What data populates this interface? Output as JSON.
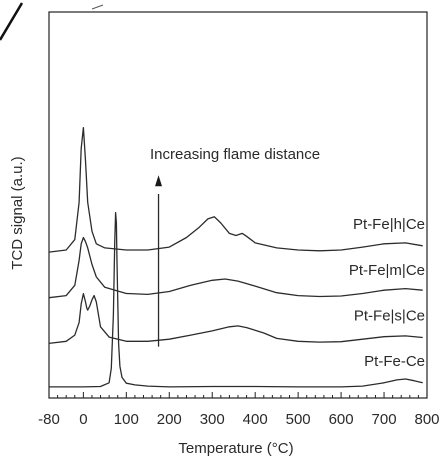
{
  "chart_data": {
    "type": "line",
    "title": "",
    "xlabel": "Temperature (°C)",
    "ylabel": "TCD signal (a.u.)",
    "xlim": [
      -80,
      800
    ],
    "x_ticks": [
      -80,
      0,
      100,
      200,
      300,
      400,
      500,
      600,
      700,
      800
    ],
    "y_ticks_shown": false,
    "grid": false,
    "annotation": {
      "text": "Increasing flame distance",
      "arrow_x": 175,
      "direction": "up"
    },
    "series": [
      {
        "name": "Pt-Fe|h|Ce",
        "offset": 3.3,
        "x": [
          -80,
          -40,
          -20,
          -10,
          -5,
          0,
          5,
          10,
          20,
          30,
          50,
          100,
          150,
          200,
          240,
          270,
          290,
          305,
          320,
          340,
          355,
          370,
          380,
          400,
          450,
          500,
          550,
          600,
          650,
          700,
          750,
          790
        ],
        "y": [
          0,
          0.05,
          0.3,
          1.2,
          2.5,
          3.0,
          2.2,
          1.2,
          0.5,
          0.2,
          0.1,
          0.05,
          0.05,
          0.12,
          0.35,
          0.6,
          0.8,
          0.85,
          0.7,
          0.45,
          0.4,
          0.45,
          0.38,
          0.22,
          0.1,
          0.05,
          0.03,
          0.05,
          0.12,
          0.2,
          0.22,
          0.15
        ]
      },
      {
        "name": "Pt-Fe|m|Ce",
        "offset": 2.2,
        "x": [
          -80,
          -40,
          -20,
          -10,
          -5,
          0,
          5,
          10,
          20,
          30,
          50,
          100,
          150,
          200,
          250,
          300,
          330,
          360,
          400,
          450,
          500,
          550,
          600,
          650,
          700,
          750,
          790
        ],
        "y": [
          0,
          0.05,
          0.3,
          0.9,
          1.3,
          1.45,
          1.35,
          1.2,
          0.8,
          0.5,
          0.25,
          0.1,
          0.08,
          0.15,
          0.3,
          0.42,
          0.45,
          0.4,
          0.28,
          0.12,
          0.05,
          0.03,
          0.04,
          0.1,
          0.18,
          0.22,
          0.18
        ]
      },
      {
        "name": "Pt-Fe|s|Ce",
        "offset": 1.1,
        "x": [
          -80,
          -40,
          -20,
          -10,
          -5,
          0,
          5,
          8,
          10,
          15,
          20,
          25,
          30,
          35,
          40,
          60,
          100,
          150,
          200,
          250,
          300,
          340,
          360,
          380,
          420,
          450,
          500,
          550,
          600,
          650,
          700,
          750,
          790
        ],
        "y": [
          0,
          0.05,
          0.2,
          0.5,
          0.95,
          1.2,
          1.0,
          0.85,
          0.8,
          0.9,
          1.05,
          1.15,
          1.0,
          0.7,
          0.4,
          0.15,
          0.05,
          0.05,
          0.1,
          0.2,
          0.3,
          0.4,
          0.42,
          0.38,
          0.25,
          0.12,
          0.05,
          0.03,
          0.04,
          0.1,
          0.16,
          0.18,
          0.14
        ]
      },
      {
        "name": "Pt-Fe-Ce",
        "offset": 0,
        "x": [
          -80,
          0,
          40,
          60,
          65,
          70,
          73,
          75,
          77,
          78,
          80,
          82,
          85,
          90,
          100,
          120,
          150,
          200,
          300,
          400,
          500,
          600,
          650,
          700,
          730,
          750,
          770,
          790
        ],
        "y": [
          0.05,
          0.05,
          0.06,
          0.15,
          0.5,
          1.8,
          3.5,
          4.25,
          4.0,
          3.2,
          2.2,
          1.1,
          0.55,
          0.28,
          0.14,
          0.1,
          0.07,
          0.05,
          0.06,
          0.06,
          0.05,
          0.05,
          0.07,
          0.15,
          0.22,
          0.24,
          0.2,
          0.15
        ]
      }
    ]
  }
}
